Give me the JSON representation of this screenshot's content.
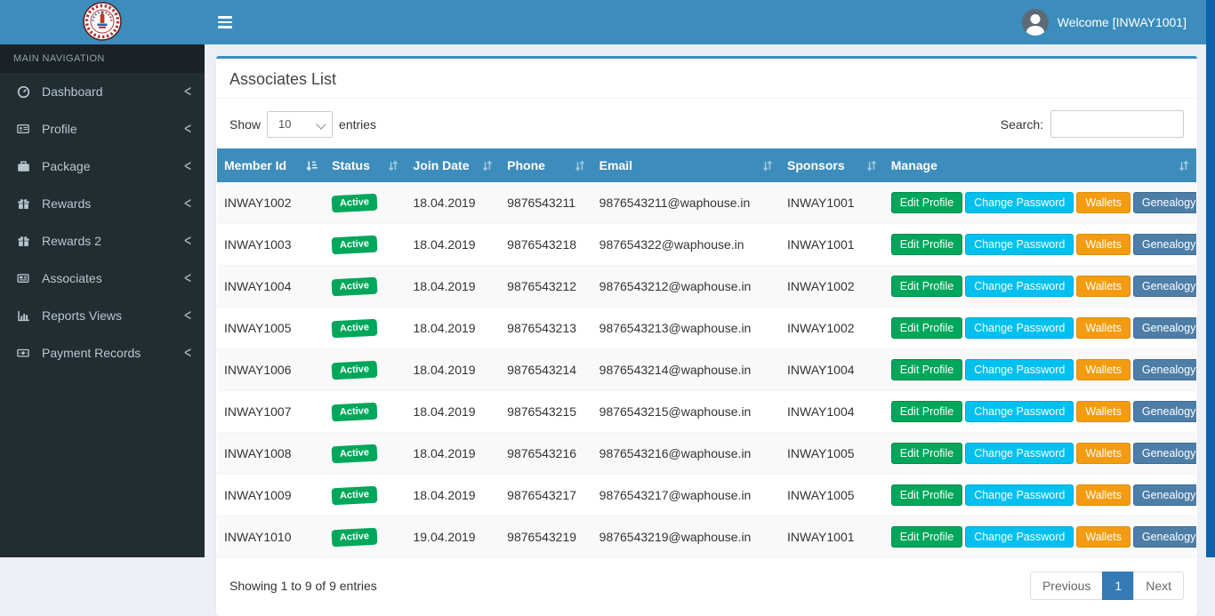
{
  "colors": {
    "navbar": "#3c8dbc",
    "sidebar_bg": "#222d32",
    "sidebar_header_bg": "#1a2226",
    "content_bg": "#ecf0f5",
    "table_header": "#3c8dbc",
    "badge_active": "#00a65a",
    "btn_edit_profile": "#00a65a",
    "btn_change_password": "#00c0ef",
    "btn_wallets": "#f39c12",
    "btn_genealogy": "#4d7ea8",
    "pagination_active": "#337ab7",
    "right_strip": "#0b61ad"
  },
  "topbar": {
    "welcome_text": "Welcome [INWAY1001]"
  },
  "sidebar": {
    "section_label": "MAIN NAVIGATION",
    "items": [
      {
        "label": "Dashboard",
        "icon": "dashboard-icon"
      },
      {
        "label": "Profile",
        "icon": "profile-icon"
      },
      {
        "label": "Package",
        "icon": "package-icon"
      },
      {
        "label": "Rewards",
        "icon": "rewards-icon"
      },
      {
        "label": "Rewards 2",
        "icon": "rewards-icon"
      },
      {
        "label": "Associates",
        "icon": "associates-icon"
      },
      {
        "label": "Reports Views",
        "icon": "reports-icon"
      },
      {
        "label": "Payment Records",
        "icon": "payments-icon"
      }
    ]
  },
  "page": {
    "title": "Associates List"
  },
  "controls": {
    "show_label": "Show",
    "page_length": "10",
    "entries_label": "entries",
    "search_label": "Search:",
    "search_value": ""
  },
  "table": {
    "columns": [
      {
        "label": "Member Id",
        "sort": "sorted"
      },
      {
        "label": "Status",
        "sort": "both"
      },
      {
        "label": "Join Date",
        "sort": "both"
      },
      {
        "label": "Phone",
        "sort": "both"
      },
      {
        "label": "Email",
        "sort": "both"
      },
      {
        "label": "Sponsors",
        "sort": "both"
      },
      {
        "label": "Manage",
        "sort": "both"
      }
    ],
    "manage_buttons": [
      {
        "label": "Edit Profile",
        "key": "edit-profile"
      },
      {
        "label": "Change Password",
        "key": "change-password"
      },
      {
        "label": "Wallets",
        "key": "wallets"
      },
      {
        "label": "Genealogy",
        "key": "genealogy"
      }
    ],
    "rows": [
      {
        "member_id": "INWAY1002",
        "status": "Active",
        "join_date": "18.04.2019",
        "phone": "9876543211",
        "email": "9876543211@waphouse.in",
        "sponsor": "INWAY1001"
      },
      {
        "member_id": "INWAY1003",
        "status": "Active",
        "join_date": "18.04.2019",
        "phone": "9876543218",
        "email": "987654322@waphouse.in",
        "sponsor": "INWAY1001"
      },
      {
        "member_id": "INWAY1004",
        "status": "Active",
        "join_date": "18.04.2019",
        "phone": "9876543212",
        "email": "9876543212@waphouse.in",
        "sponsor": "INWAY1002"
      },
      {
        "member_id": "INWAY1005",
        "status": "Active",
        "join_date": "18.04.2019",
        "phone": "9876543213",
        "email": "9876543213@waphouse.in",
        "sponsor": "INWAY1002"
      },
      {
        "member_id": "INWAY1006",
        "status": "Active",
        "join_date": "18.04.2019",
        "phone": "9876543214",
        "email": "9876543214@waphouse.in",
        "sponsor": "INWAY1004"
      },
      {
        "member_id": "INWAY1007",
        "status": "Active",
        "join_date": "18.04.2019",
        "phone": "9876543215",
        "email": "9876543215@waphouse.in",
        "sponsor": "INWAY1004"
      },
      {
        "member_id": "INWAY1008",
        "status": "Active",
        "join_date": "18.04.2019",
        "phone": "9876543216",
        "email": "9876543216@waphouse.in",
        "sponsor": "INWAY1005"
      },
      {
        "member_id": "INWAY1009",
        "status": "Active",
        "join_date": "18.04.2019",
        "phone": "9876543217",
        "email": "9876543217@waphouse.in",
        "sponsor": "INWAY1005"
      },
      {
        "member_id": "INWAY1010",
        "status": "Active",
        "join_date": "19.04.2019",
        "phone": "9876543219",
        "email": "9876543219@waphouse.in",
        "sponsor": "INWAY1001"
      }
    ]
  },
  "footer": {
    "summary": "Showing 1 to 9 of 9 entries",
    "pagination": {
      "previous": "Previous",
      "current": "1",
      "next": "Next"
    }
  }
}
